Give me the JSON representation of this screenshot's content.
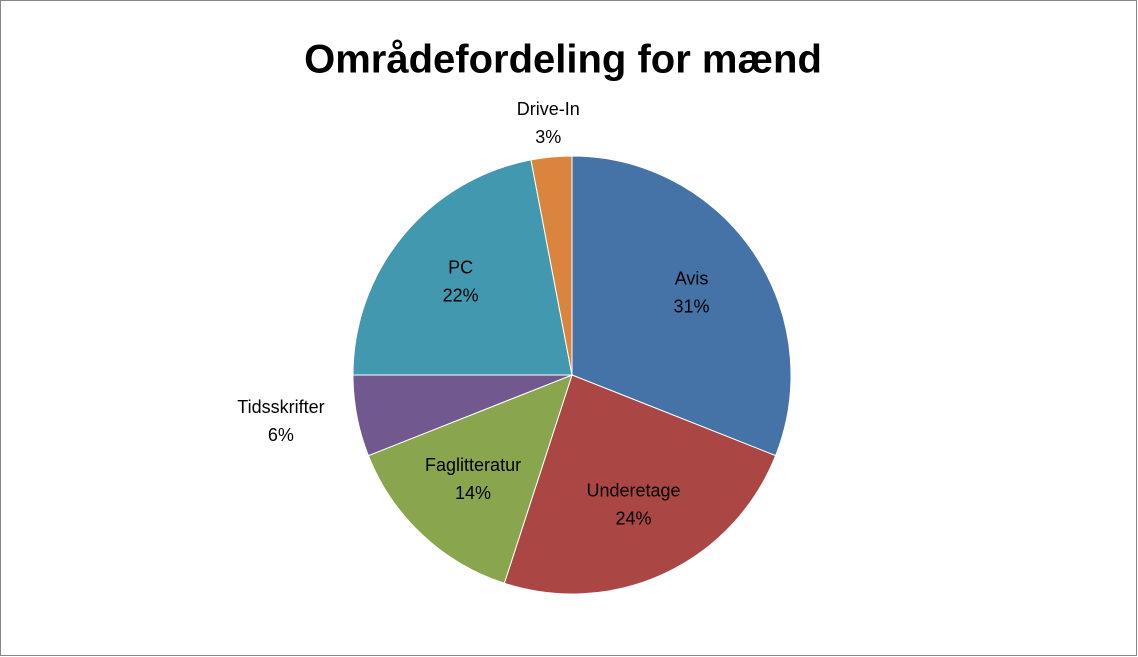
{
  "chart_data": {
    "type": "pie",
    "title": "Områdefordeling for mænd",
    "categories": [
      "Avis",
      "Underetage",
      "Faglitteratur",
      "Tidsskrifter",
      "PC",
      "Drive-In"
    ],
    "values": [
      31,
      24,
      14,
      6,
      22,
      3
    ],
    "value_labels": [
      "31%",
      "24%",
      "14%",
      "6%",
      "22%",
      "3%"
    ],
    "colors": [
      "#4572a7",
      "#aa4643",
      "#89a54e",
      "#71588f",
      "#4198af",
      "#db843d"
    ]
  }
}
